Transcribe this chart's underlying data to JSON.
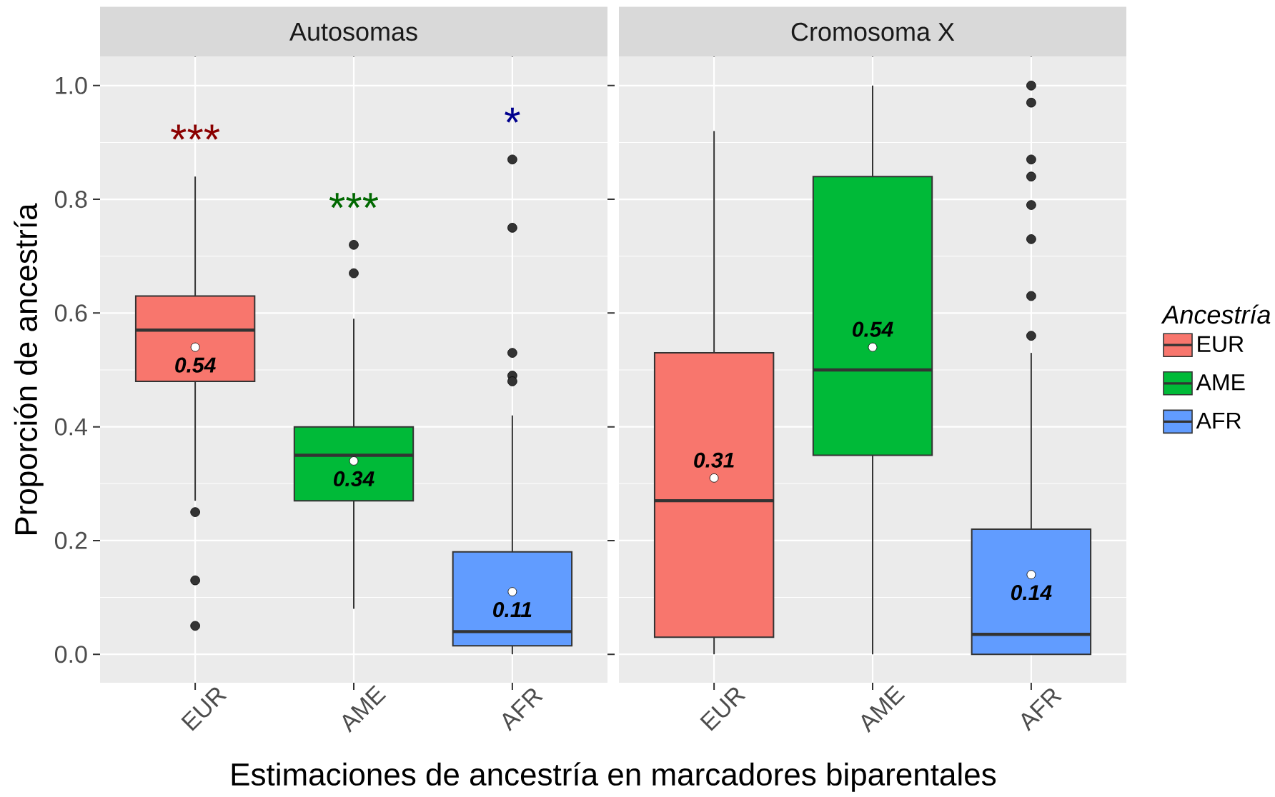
{
  "chart_data": [
    {
      "type": "box",
      "title": "Autosomas",
      "xlabel": "Estimaciones de ancestría en marcadores biparentales",
      "ylabel": "Proporción de ancestría",
      "categories": [
        "EUR",
        "AME",
        "AFR"
      ],
      "series": [
        {
          "color": "#f8766d",
          "boxes": [
            {
              "low": 0.27,
              "q1": 0.48,
              "median": 0.57,
              "q3": 0.63,
              "high": 0.84,
              "mean": 0.54,
              "outliers": [
                0.25,
                0.13,
                0.05
              ]
            },
            null,
            null
          ],
          "value_labels": [
            "0.54",
            null,
            null
          ]
        },
        {
          "color": "#00ba38",
          "boxes": [
            null,
            {
              "low": 0.08,
              "q1": 0.27,
              "median": 0.35,
              "q3": 0.4,
              "high": 0.59,
              "mean": 0.34,
              "outliers": [
                0.72,
                0.67
              ]
            },
            null
          ],
          "value_labels": [
            null,
            "0.34",
            null
          ]
        },
        {
          "color": "#619cff",
          "boxes": [
            null,
            null,
            {
              "low": 0,
              "q1": 0.015,
              "median": 0.04,
              "q3": 0.18,
              "high": 0.42,
              "mean": 0.11,
              "outliers": [
                0.87,
                0.75,
                0.53,
                0.49,
                0.48
              ]
            }
          ],
          "value_labels": [
            null,
            null,
            "0.11"
          ]
        }
      ],
      "ylim": [
        -0.05,
        1.05
      ],
      "yticks": [
        {
          "value": 0,
          "label": "0.0"
        },
        0.2,
        0.4,
        0.6,
        0.8,
        {
          "value": 1,
          "label": "1.0"
        }
      ],
      "grid": true,
      "annotations": [
        "***",
        "***",
        "*"
      ]
    },
    {
      "type": "box",
      "title": "Cromosoma X",
      "categories": [
        "EUR",
        "AME",
        "AFR"
      ],
      "series": [
        {
          "name": "EUR",
          "color": "#f8766d",
          "boxes": [
            {
              "low": 0,
              "q1": 0.03,
              "median": 0.27,
              "q3": 0.53,
              "high": 0.92,
              "mean": 0.31
            },
            null,
            null
          ],
          "value_labels": [
            "0.31",
            null,
            null
          ]
        },
        {
          "name": "AME",
          "color": "#00ba38",
          "boxes": [
            null,
            {
              "low": 0,
              "q1": 0.35,
              "median": 0.5,
              "q3": 0.84,
              "high": 1,
              "mean": 0.54
            },
            null
          ],
          "value_labels": [
            null,
            "0.54",
            null
          ]
        },
        {
          "name": "AFR",
          "color": "#619cff",
          "boxes": [
            null,
            null,
            {
              "low": 0,
              "q1": 0,
              "median": 0.035,
              "q3": 0.22,
              "high": 0.53,
              "mean": 0.14,
              "outliers": [
                1,
                0.97,
                0.87,
                0.84,
                0.79,
                0.73,
                0.63,
                0.56
              ]
            }
          ],
          "value_labels": [
            null,
            null,
            "0.14"
          ]
        }
      ],
      "ylim": [
        -0.05,
        1.05
      ],
      "yticks": [
        0,
        0.2,
        0.4,
        0.6,
        0.8,
        1
      ],
      "tick_labels": "x",
      "grid": true,
      "legend": "right",
      "legend_title": "Ancestría"
    }
  ]
}
